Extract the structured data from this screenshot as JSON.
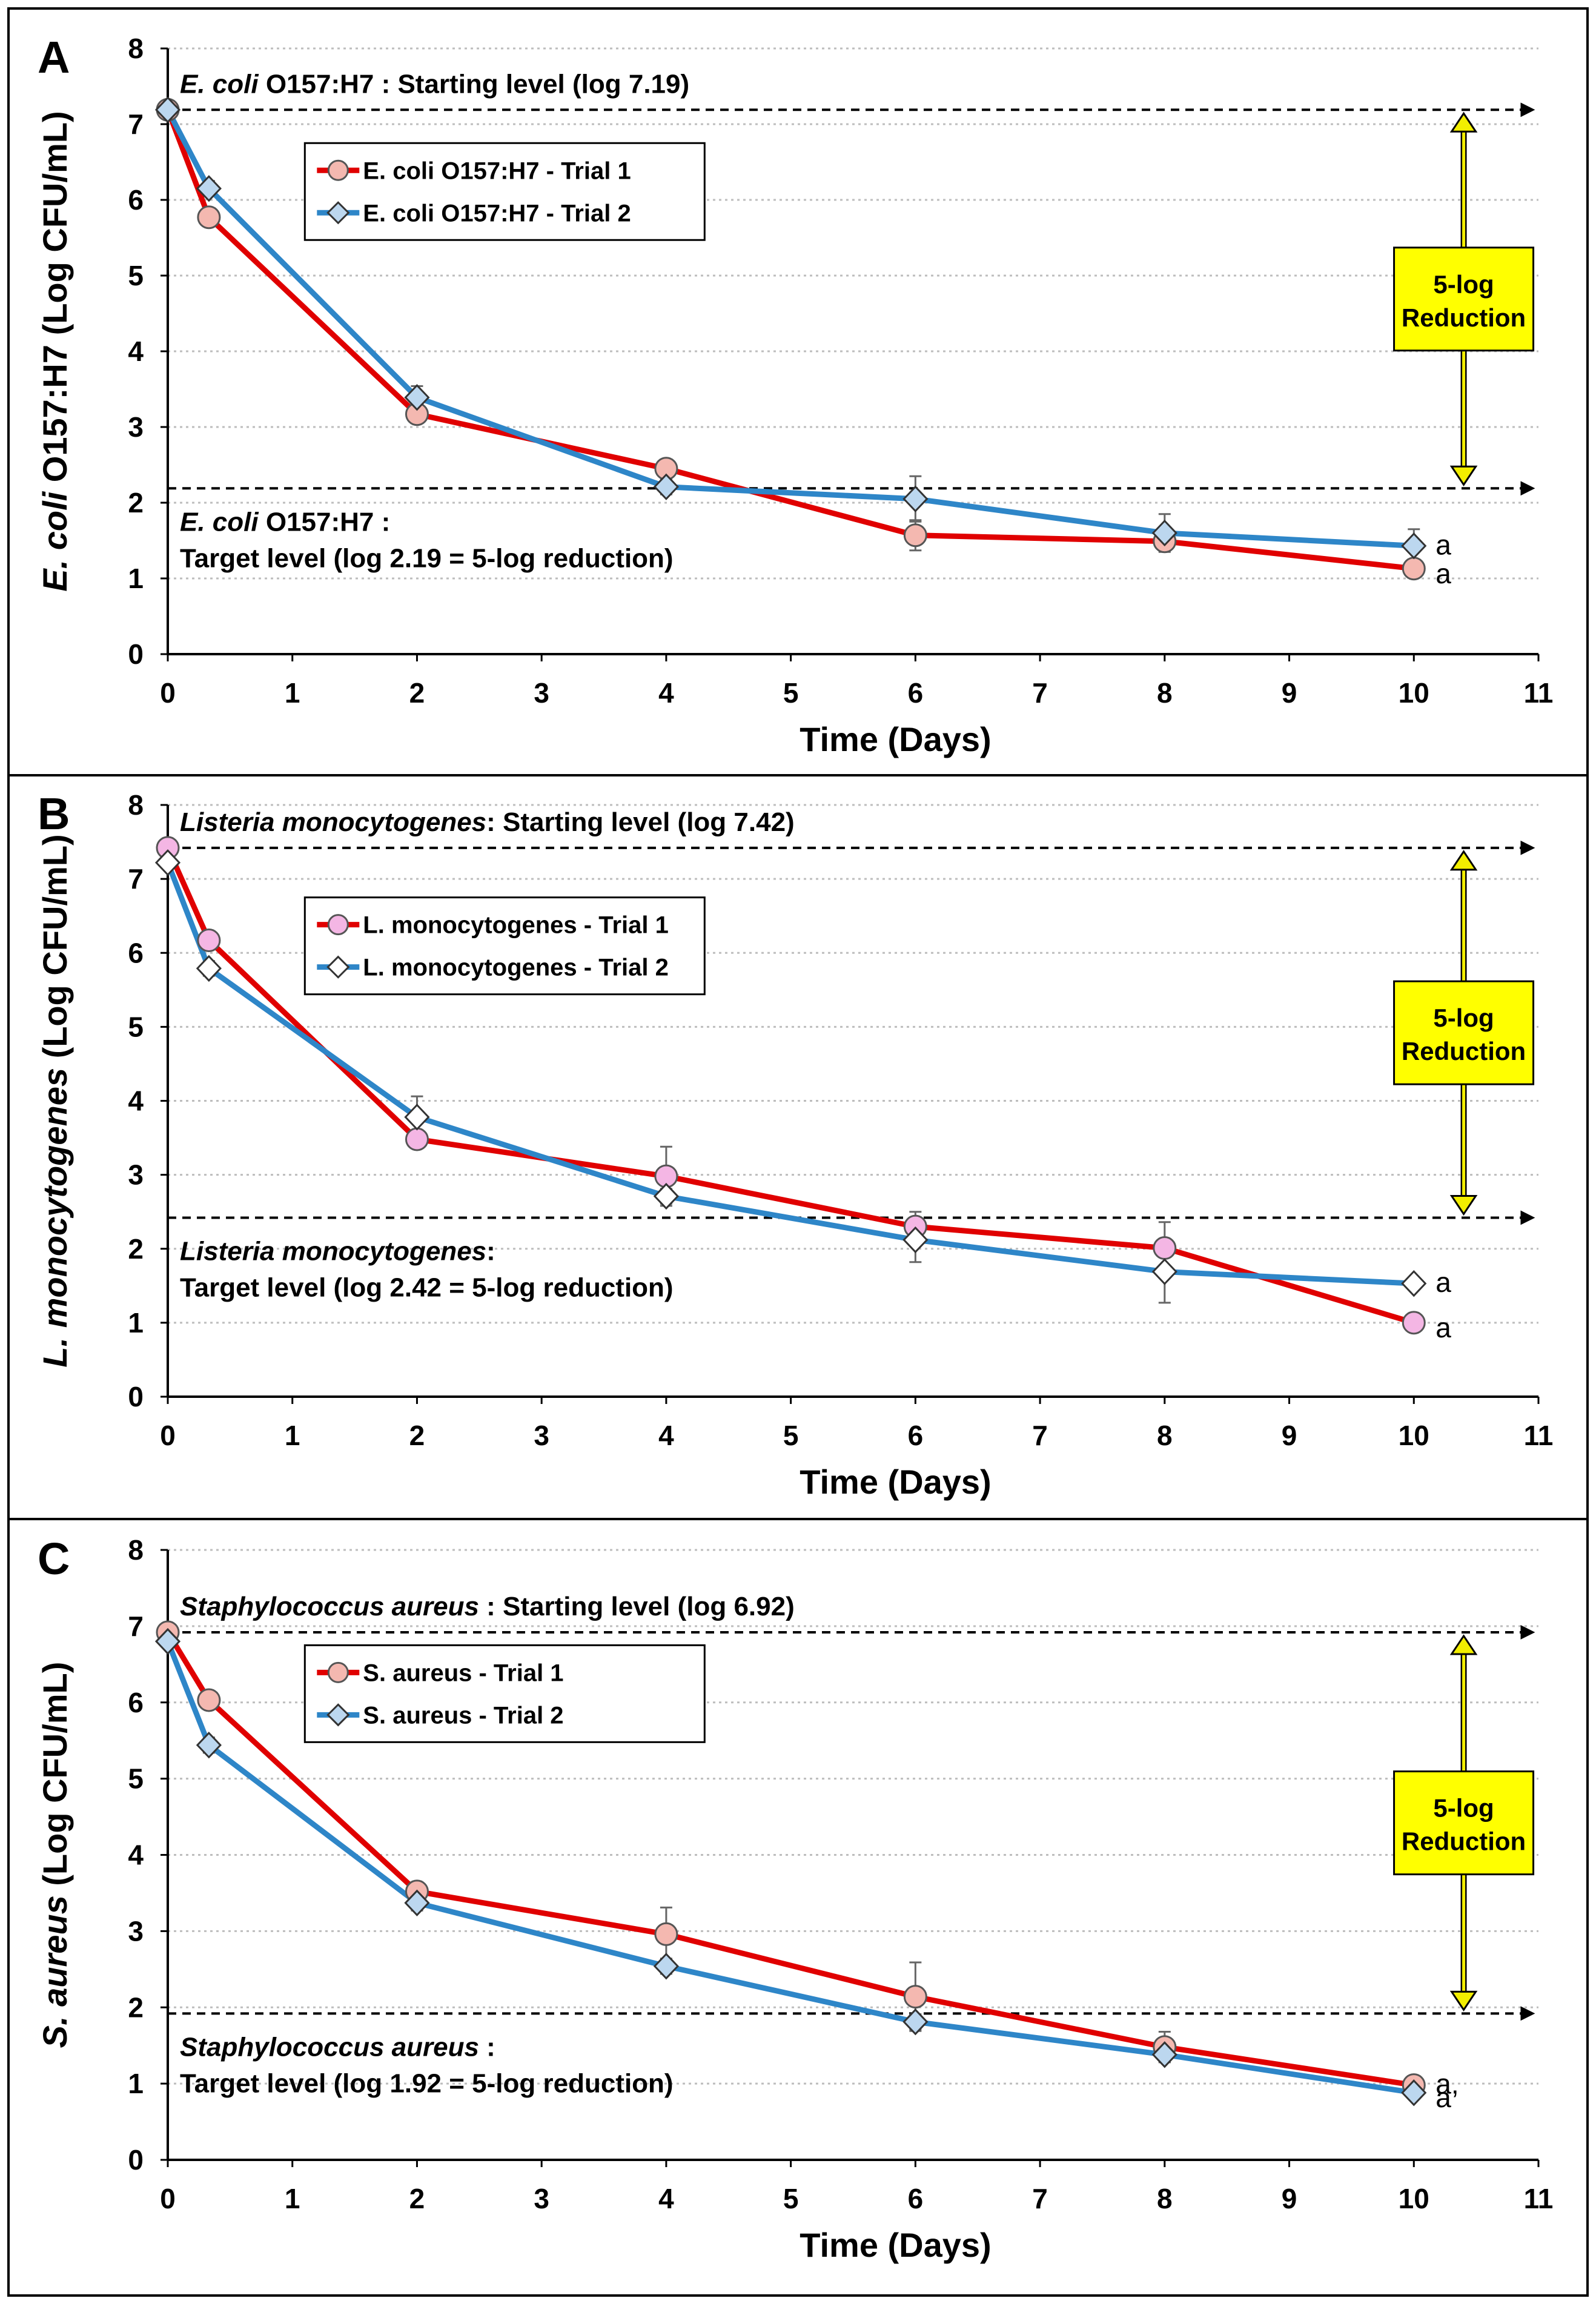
{
  "chart_data": [
    {
      "type": "line",
      "panel_label": "A",
      "xlabel": "Time (Days)",
      "ylabel_italic": "E. coli",
      "ylabel_rest": " O157:H7 (Log CFU/mL)",
      "xlim": [
        0,
        11
      ],
      "ylim": [
        0,
        8
      ],
      "xticks": [
        "0",
        "1",
        "2",
        "3",
        "4",
        "5",
        "6",
        "7",
        "8",
        "9",
        "10",
        "11"
      ],
      "yticks": [
        "0",
        "1",
        "2",
        "3",
        "4",
        "5",
        "6",
        "7",
        "8"
      ],
      "start_level": 7.19,
      "target_level": 2.19,
      "start_label_italic": "E. coli",
      "start_label_rest": " O157:H7 : Starting level (log 7.19)",
      "target_label_line1_italic": "E. coli",
      "target_label_line1_rest": " O157:H7 :",
      "target_label_line2": "Target level (log 2.19 = 5-log reduction)",
      "reduction_label_line1": "5-log",
      "reduction_label_line2": "Reduction",
      "series": [
        {
          "name": "E. coli O157:H7  - Trial 1",
          "color": "#e00000",
          "marker": "circle",
          "marker_fill": "#f4b8b0",
          "x": [
            0,
            0.33,
            2,
            4,
            6,
            8,
            10
          ],
          "y": [
            7.19,
            5.77,
            3.17,
            2.45,
            1.57,
            1.49,
            1.13
          ],
          "err": [
            0,
            0.12,
            0.1,
            0.1,
            0.2,
            0.1,
            0.1
          ]
        },
        {
          "name": "E. coli O157:H7  - Trial 2",
          "color": "#2e86c8",
          "marker": "diamond",
          "marker_fill": "#bcd7ef",
          "x": [
            0,
            0.33,
            2,
            4,
            6,
            8,
            10
          ],
          "y": [
            7.19,
            6.15,
            3.39,
            2.21,
            2.05,
            1.6,
            1.43
          ],
          "err": [
            0,
            0.1,
            0.15,
            0.1,
            0.3,
            0.25,
            0.22
          ]
        }
      ],
      "significance": [
        "a",
        "a"
      ]
    },
    {
      "type": "line",
      "panel_label": "B",
      "xlabel": "Time (Days)",
      "ylabel_italic": "L. monocytogenes",
      "ylabel_rest": " (Log CFU/mL)",
      "xlim": [
        0,
        11
      ],
      "ylim": [
        0,
        8
      ],
      "xticks": [
        "0",
        "1",
        "2",
        "3",
        "4",
        "5",
        "6",
        "7",
        "8",
        "9",
        "10",
        "11"
      ],
      "yticks": [
        "0",
        "1",
        "2",
        "3",
        "4",
        "5",
        "6",
        "7",
        "8"
      ],
      "start_level": 7.42,
      "target_level": 2.42,
      "start_label_italic": "Listeria monocytogenes",
      "start_label_rest": ": Starting level (log 7.42)",
      "target_label_line1_italic": "Listeria monocytogenes",
      "target_label_line1_rest": ":",
      "target_label_line2": "Target level (log 2.42 = 5-log reduction)",
      "reduction_label_line1": "5-log",
      "reduction_label_line2": "Reduction",
      "series": [
        {
          "name": "L. monocytogenes - Trial 1",
          "color": "#e00000",
          "marker": "circle",
          "marker_fill": "#f4b6e4",
          "x": [
            0,
            0.33,
            2,
            4,
            6,
            8,
            10
          ],
          "y": [
            7.42,
            6.17,
            3.48,
            2.98,
            2.3,
            2.01,
            1.0
          ],
          "err": [
            0,
            0.1,
            0.1,
            0.4,
            0.2,
            0.35,
            0.05
          ]
        },
        {
          "name": "L. monocytogenes - Trial 2",
          "color": "#2e86c8",
          "marker": "diamond",
          "marker_fill": "#ffffff",
          "x": [
            0,
            0.33,
            2,
            4,
            6,
            8,
            10
          ],
          "y": [
            7.22,
            5.79,
            3.78,
            2.71,
            2.12,
            1.69,
            1.53
          ],
          "err": [
            0,
            0.1,
            0.28,
            0.1,
            0.3,
            0.42,
            0.05
          ]
        }
      ],
      "significance": [
        "a",
        "a"
      ]
    },
    {
      "type": "line",
      "panel_label": "C",
      "xlabel": "Time (Days)",
      "ylabel_italic": "S. aureus",
      "ylabel_rest": " (Log CFU/mL)",
      "xlim": [
        0,
        11
      ],
      "ylim": [
        0,
        8
      ],
      "xticks": [
        "0",
        "1",
        "2",
        "3",
        "4",
        "5",
        "6",
        "7",
        "8",
        "9",
        "10",
        "11"
      ],
      "yticks": [
        "0",
        "1",
        "2",
        "3",
        "4",
        "5",
        "6",
        "7",
        "8"
      ],
      "start_level": 6.92,
      "target_level": 1.92,
      "start_label_italic": "Staphylococcus aureus",
      "start_label_rest": " : Starting level (log 6.92)",
      "target_label_line1_italic": "Staphylococcus aureus",
      "target_label_line1_rest": " :",
      "target_label_line2": "Target level (log 1.92 = 5-log reduction)",
      "reduction_label_line1": "5-log",
      "reduction_label_line2": "Reduction",
      "series": [
        {
          "name": "S. aureus - Trial 1",
          "color": "#e00000",
          "marker": "circle",
          "marker_fill": "#f4b8b0",
          "x": [
            0,
            0.33,
            2,
            4,
            6,
            8,
            10
          ],
          "y": [
            6.92,
            6.03,
            3.52,
            2.96,
            2.14,
            1.48,
            0.98
          ],
          "err": [
            0,
            0.1,
            0.1,
            0.35,
            0.45,
            0.2,
            0.05
          ]
        },
        {
          "name": "S. aureus - Trial 2",
          "color": "#2e86c8",
          "marker": "diamond",
          "marker_fill": "#bcd7ef",
          "x": [
            0,
            0.33,
            2,
            4,
            6,
            8,
            10
          ],
          "y": [
            6.8,
            5.44,
            3.37,
            2.54,
            1.81,
            1.38,
            0.88
          ],
          "err": [
            0,
            0.1,
            0.1,
            0.1,
            0.1,
            0.1,
            0.05
          ]
        }
      ],
      "significance": [
        "a,",
        "a"
      ]
    }
  ]
}
